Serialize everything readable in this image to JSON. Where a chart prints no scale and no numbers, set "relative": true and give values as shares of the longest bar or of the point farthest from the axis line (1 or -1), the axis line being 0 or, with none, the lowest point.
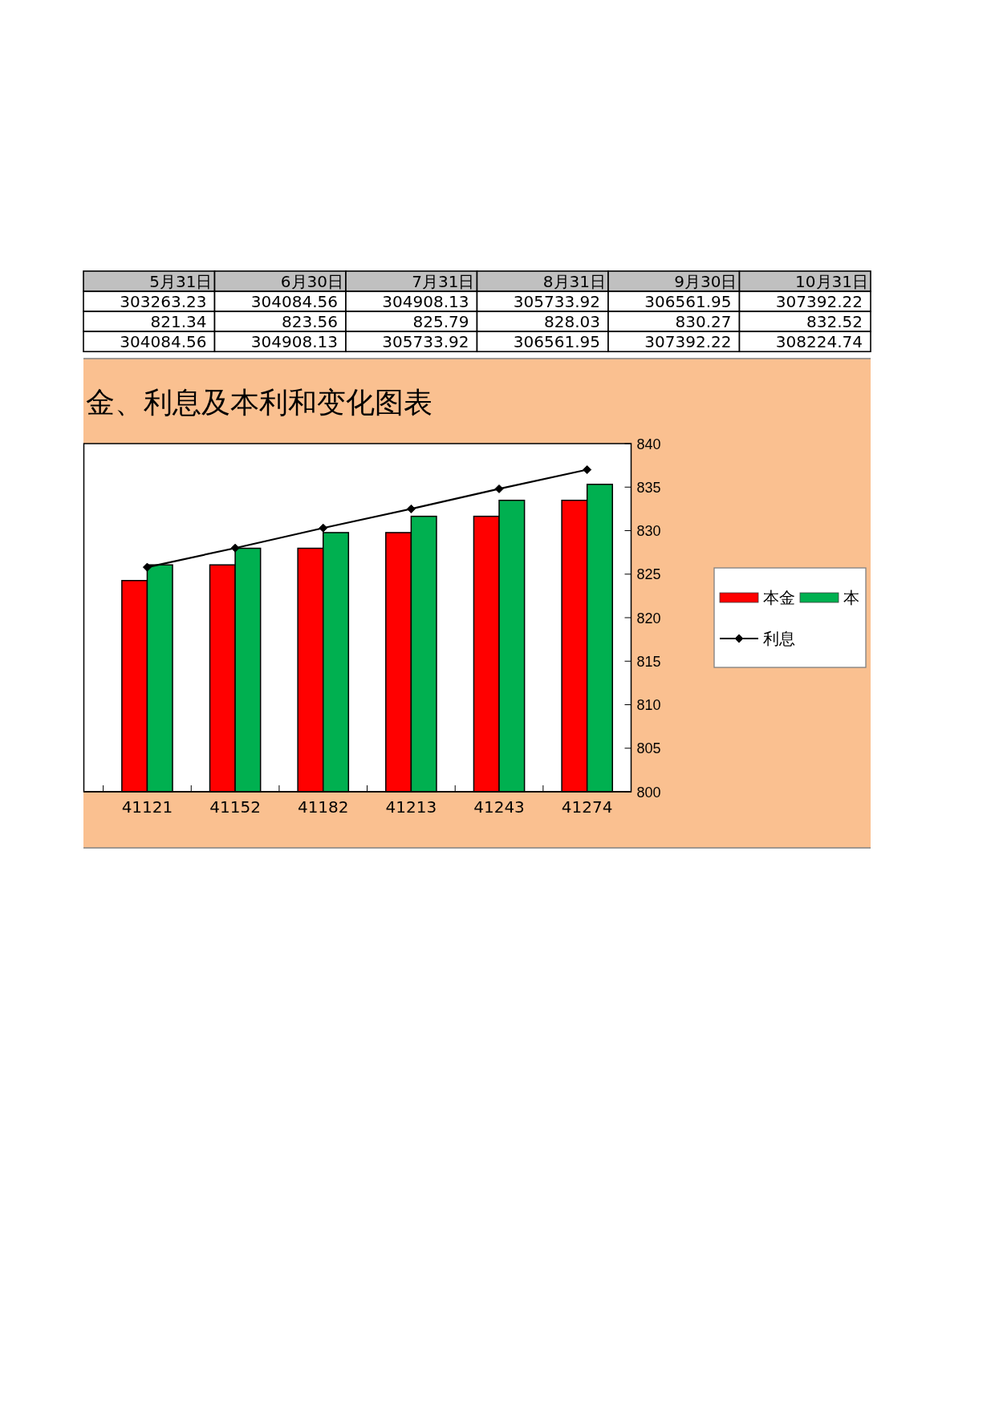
{
  "chart_data": [
    {
      "type": "other",
      "categories": [
        "5月31日",
        "6月30日",
        "7月31日",
        "8月31日",
        "9月30日",
        "10月31日"
      ],
      "series": [
        {
          "values": [
            303263.23,
            304084.56,
            304908.13,
            305733.92,
            306561.95,
            307392.22
          ]
        },
        {
          "values": [
            821.34,
            823.56,
            825.79,
            828.03,
            830.27,
            832.52
          ]
        },
        {
          "values": [
            304084.56,
            304908.13,
            305733.92,
            306561.95,
            307392.22,
            308224.74
          ]
        }
      ],
      "data_labels": true
    },
    {
      "type": "bar",
      "title": "金、利息及本利和变化图表",
      "categories": [
        "41121",
        "41152",
        "41182",
        "41213",
        "41243",
        "41274"
      ],
      "relative": true,
      "series": [
        {
          "name": "本金",
          "color": "#ff0000",
          "values": [
            0.687,
            0.738,
            0.792,
            0.843,
            0.896,
            0.948
          ]
        },
        {
          "name": "本",
          "color": "#00b050",
          "values": [
            0.738,
            0.792,
            0.843,
            0.896,
            0.948,
            1
          ]
        }
      ],
      "legend": "right"
    },
    {
      "type": "line",
      "categories": [
        null,
        null,
        null,
        null,
        null,
        null
      ],
      "series": [
        {
          "name": "利息",
          "color": "#000000",
          "values": [
            825.8,
            828.0,
            830.3,
            832.5,
            834.8,
            837.0
          ]
        }
      ],
      "ylim": [
        800,
        840
      ],
      "yticks": [
        800,
        805,
        810,
        815,
        820,
        825,
        830,
        835,
        840
      ],
      "marker": "diamond",
      "legend": "right"
    }
  ]
}
